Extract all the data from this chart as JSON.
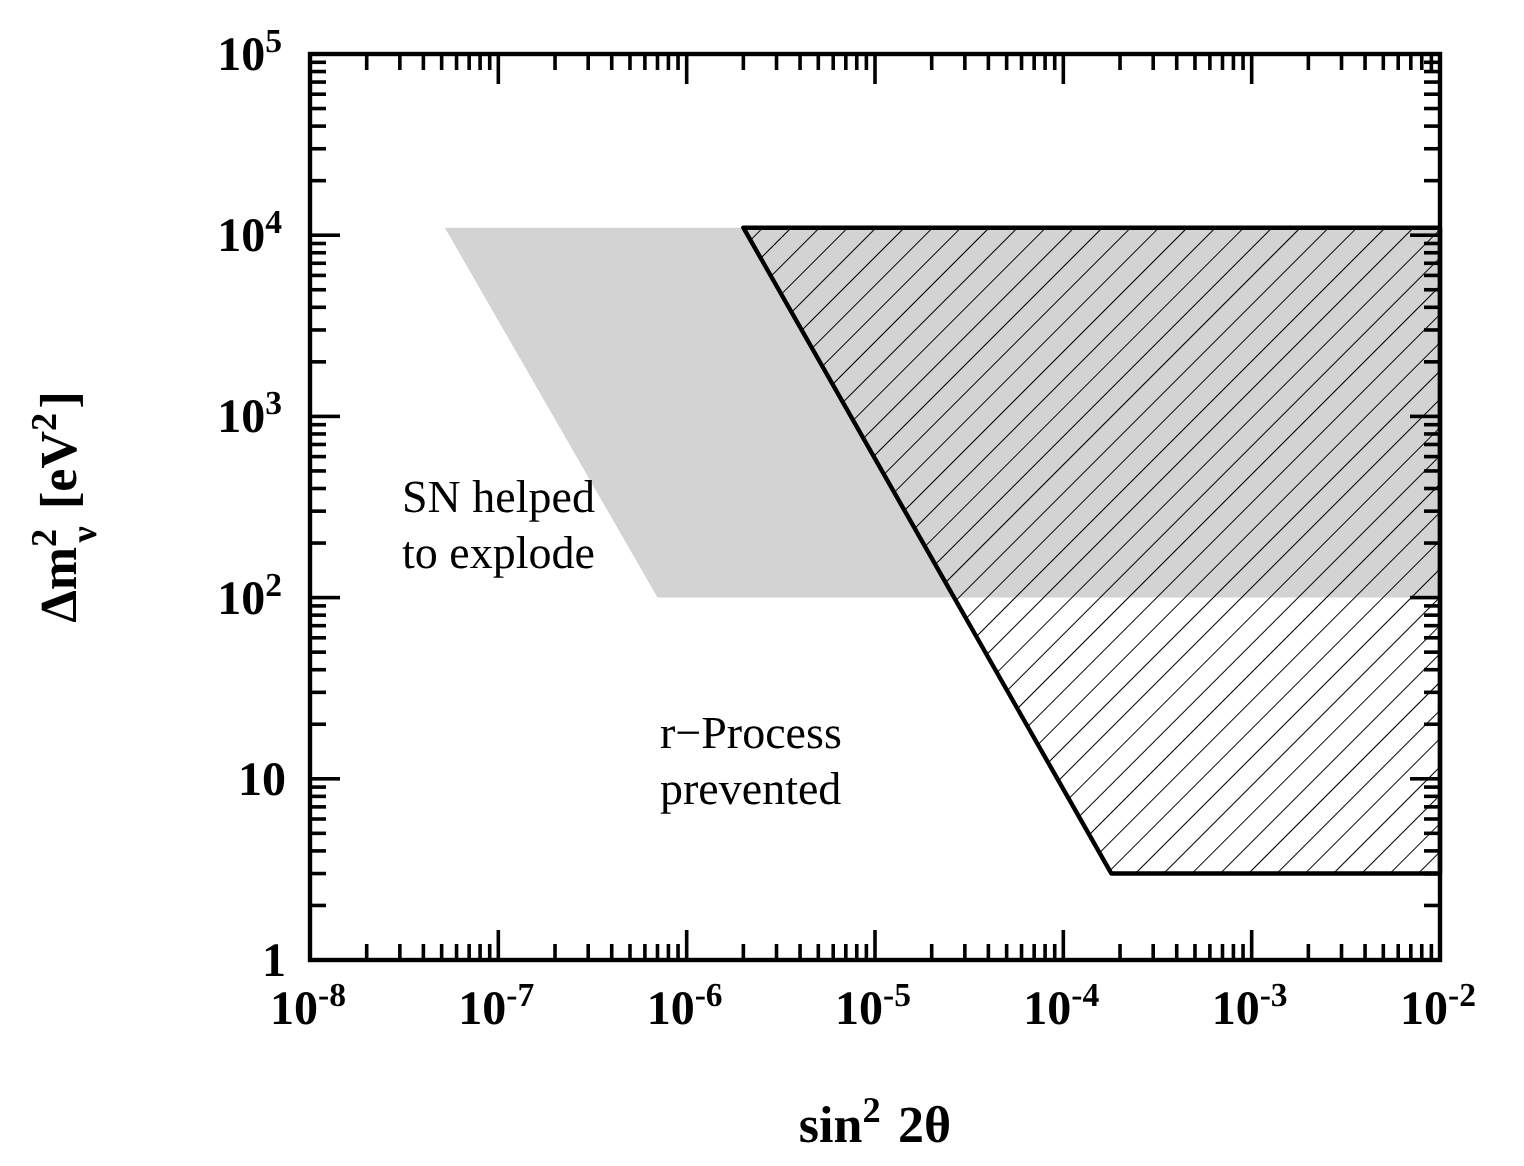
{
  "chart_data": {
    "type": "area",
    "xlabel": "sin$^{2}$ 2θ",
    "ylabel": "Δm$^{2}$$_{ν}$ [eV$^{2}$]",
    "log": "xy",
    "grid": false,
    "xlim": [
      1e-08,
      0.01
    ],
    "ylim": [
      1,
      100000
    ],
    "xticks": [
      {
        "value": 1e-08,
        "label": "10$^{-8}$"
      },
      {
        "value": 1e-07,
        "label": "10$^{-7}$"
      },
      {
        "value": 1e-06,
        "label": "10$^{-6}$"
      },
      {
        "value": 1e-05,
        "label": "10$^{-5}$"
      },
      {
        "value": 0.0001,
        "label": "10$^{-4}$"
      },
      {
        "value": 0.001,
        "label": "10$^{-3}$"
      },
      {
        "value": 0.01,
        "label": "10$^{-2}$"
      }
    ],
    "yticks": [
      1,
      10,
      {
        "value": 100,
        "label": "10$^{2}$"
      },
      {
        "value": 1000,
        "label": "10$^{3}$"
      },
      {
        "value": 10000,
        "label": "10$^{4}$"
      },
      {
        "value": 100000,
        "label": "10$^{5}$"
      }
    ],
    "series": [
      {
        "color": "#d3d3d3",
        "x": [
          5.2e-08,
          0.01,
          0.01,
          7e-07
        ],
        "values": [
          11000,
          11000,
          100,
          100
        ]
      },
      {
        "color": "#000000",
        "x": [
          2e-06,
          0.01,
          0.01,
          0.00018
        ],
        "values": [
          11000,
          11000,
          3,
          3
        ]
      }
    ],
    "annotations": [
      "SN helped\nto explode",
      "r−Process\nprevented"
    ]
  }
}
